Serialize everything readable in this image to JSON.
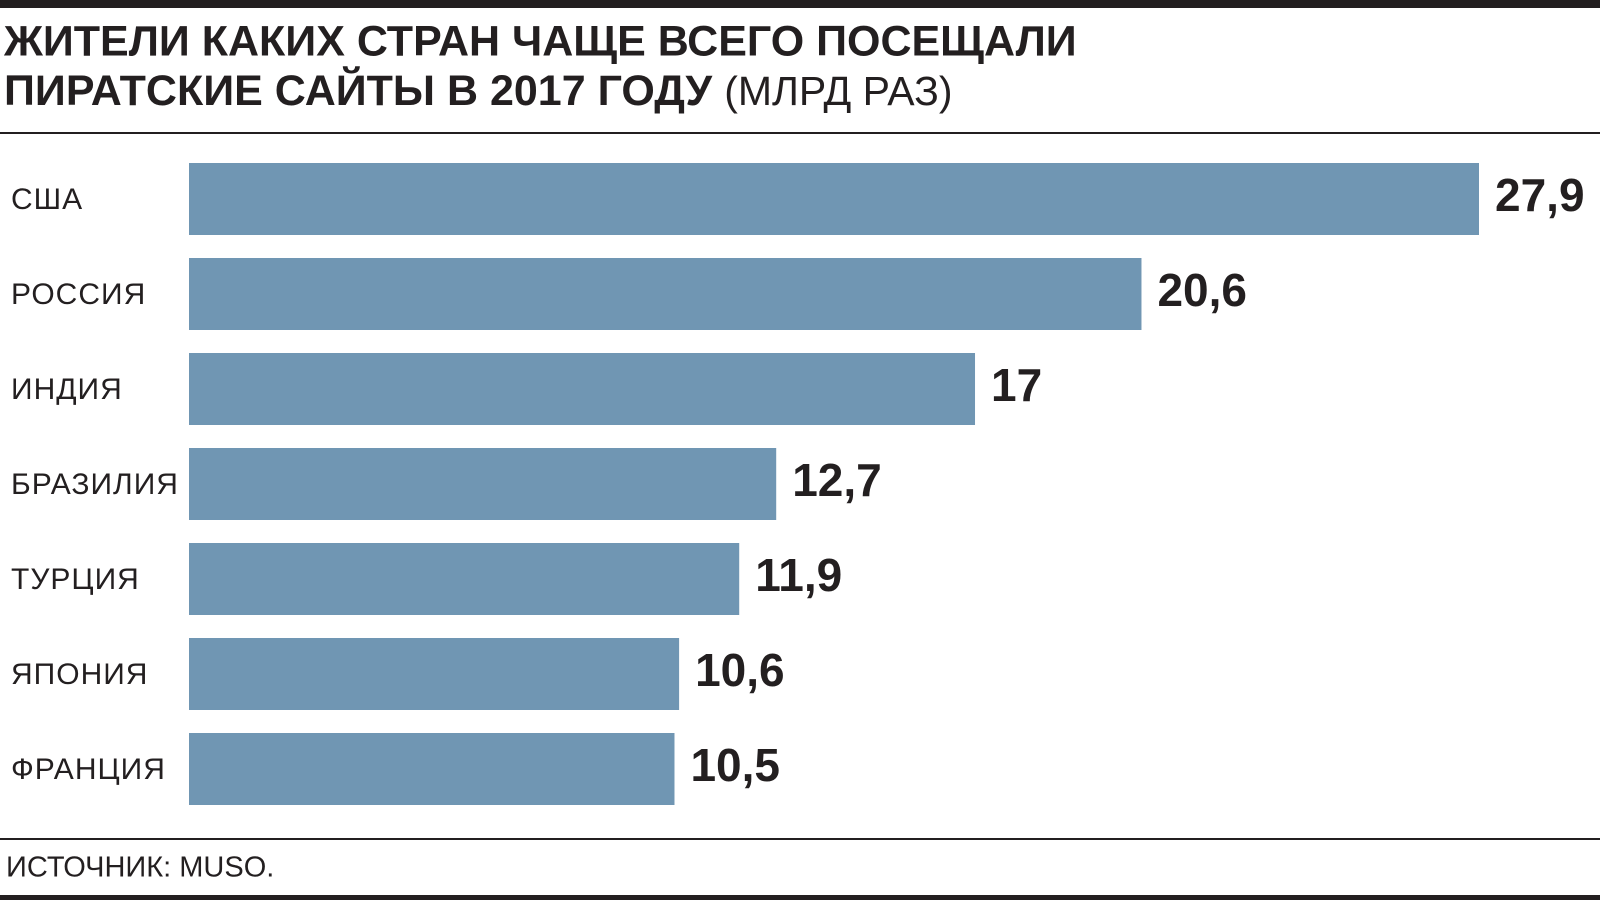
{
  "chart_data": {
    "type": "hbar",
    "title": "ЖИТЕЛИ КАКИХ СТРАН ЧАЩЕ ВСЕГО ПОСЕЩАЛИ ПИРАТСКИЕ САЙТЫ В 2017 ГОДУ",
    "subtitle": "(МЛРД РАЗ)",
    "categories": [
      "США",
      "РОССИЯ",
      "ИНДИЯ",
      "БРАЗИЛИЯ",
      "ТУРЦИЯ",
      "ЯПОНИЯ",
      "ФРАНЦИЯ"
    ],
    "values": [
      27.9,
      20.6,
      17,
      12.7,
      11.9,
      10.6,
      10.5
    ],
    "value_labels": [
      "27,9",
      "20,6",
      "17",
      "12,7",
      "11,9",
      "10,6",
      "10,5"
    ],
    "color": "#7096b3",
    "source": "ИСТОЧНИК: MUSO."
  }
}
